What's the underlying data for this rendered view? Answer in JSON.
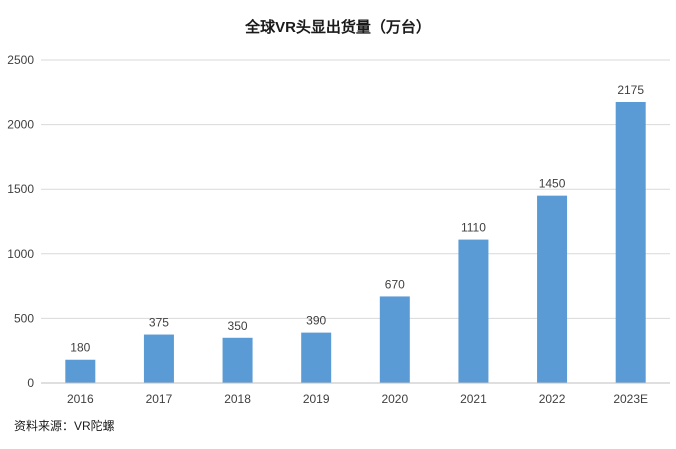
{
  "chart_data": {
    "type": "bar",
    "title": "全球VR头显出货量（万台）",
    "categories": [
      "2016",
      "2017",
      "2018",
      "2019",
      "2020",
      "2021",
      "2022",
      "2023E"
    ],
    "values": [
      180,
      375,
      350,
      390,
      670,
      1110,
      1450,
      2175
    ],
    "data_labels": [
      "180",
      "375",
      "350",
      "390",
      "670",
      "1110",
      "1450",
      "2175"
    ],
    "y_ticks": [
      0,
      500,
      1000,
      1500,
      2000,
      2500
    ],
    "ylim": [
      0,
      2500
    ],
    "xlabel": "",
    "ylabel": "",
    "grid": true,
    "legend": "none",
    "bar_color": "#5b9bd5"
  },
  "source_note": "资料来源：VR陀螺"
}
